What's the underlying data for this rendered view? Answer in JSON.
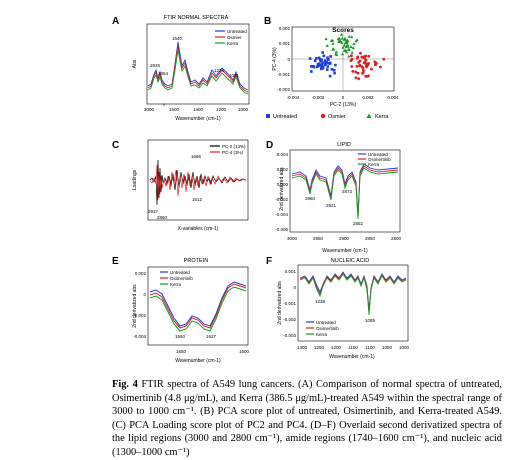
{
  "colors": {
    "untreated": "#1f3fd6",
    "osimertinib": "#e02020",
    "kerra": "#159a2a",
    "pc2": "#000000",
    "pc4": "#e02020"
  },
  "panels": {
    "A": {
      "letter": "A",
      "title": "FTIR NORMAL SPECTRA",
      "ylabel": "Abs",
      "xlabel": "Wavenumber (cm-1)",
      "xticks": [
        "3000",
        "1600",
        "1400",
        "1200",
        "1000"
      ],
      "legend": [
        "Untreated",
        "Osmier",
        "Kerra"
      ],
      "peaks": [
        "2925",
        "2854",
        "1640",
        "1234",
        "1081"
      ]
    },
    "B": {
      "letter": "B",
      "title": "Scores",
      "xlabel": "PC-2 (13%)",
      "ylabel": "PC-4 (3%)",
      "xticks": [
        "-0.004",
        "-0.002",
        "0",
        "0.002",
        "0.004"
      ],
      "yticks": [
        "0.002",
        "0.001",
        "0",
        "-0.001",
        "-0.002"
      ],
      "legend": [
        "Untreated",
        "Osmier",
        "Kerra"
      ]
    },
    "C": {
      "letter": "C",
      "ylabel": "Loadings",
      "xlabel": "X-variables (cm-1)",
      "legend": [
        "PC-2 (13%)",
        "PC-4 (3%)"
      ],
      "peaks": [
        "1666",
        "1612",
        "2917",
        "2860"
      ]
    },
    "D": {
      "letter": "D",
      "title": "LIPID",
      "ylabel": "2nd derivatized abs",
      "xlabel": "Wavenumber (cm-1)",
      "xticks": [
        "3000",
        "2950",
        "2900",
        "2850",
        "2800"
      ],
      "yticks": [
        "0.004",
        "0.002",
        "0.000",
        "-0.002",
        "-0.004",
        "-0.006"
      ],
      "legend": [
        "Untreated",
        "Osimertinib",
        "Kerra"
      ],
      "peaks": [
        "2960",
        "2921",
        "2873",
        "2852"
      ]
    },
    "E": {
      "letter": "E",
      "title": "PROTEIN",
      "ylabel": "2nd derivatized abs",
      "xlabel": "Wavenumber (cm-1)",
      "xticks": [
        "1650",
        "1600"
      ],
      "yticks": [
        "0.002",
        "0",
        "-0.002",
        "-0.004"
      ],
      "legend": [
        "Untreated",
        "Osimertinib",
        "Kerra"
      ],
      "peaks": [
        "1650",
        "1627"
      ]
    },
    "F": {
      "letter": "F",
      "title": "NUCLEIC ACID",
      "ylabel": "2nd derivatized abs",
      "xlabel": "Wavenumber (cm-1)",
      "xticks": [
        "1300",
        "1250",
        "1200",
        "1150",
        "1100",
        "1050",
        "1000"
      ],
      "yticks": [
        "0.001",
        "0",
        "-0.001",
        "-0.002",
        "-0.003"
      ],
      "legend": [
        "Untreated",
        "Osimertinib",
        "Kerra"
      ],
      "peaks": [
        "1238",
        "1085"
      ]
    }
  },
  "caption": {
    "label": "Fig. 4",
    "text": " FTIR spectra of A549 lung cancers. (A) Comparison of normal spectra of untreated, Osimertinib (4.8 μg/mL), and Kerra (386.5 μg/mL)-treated A549 within the spectral range of 3000 to 1000 cm⁻¹. (B) PCA score plot of untreated, Osimertinib, and Kerra-treated A549. (C) PCA Loading score plot of PC2 and PC4. (D–F) Overlaid second derivatized spectra of the lipid regions (3000 and 2800 cm⁻¹), amide regions (1740–1600 cm⁻¹), and nucleic acid (1300–1000 cm⁻¹)"
  }
}
